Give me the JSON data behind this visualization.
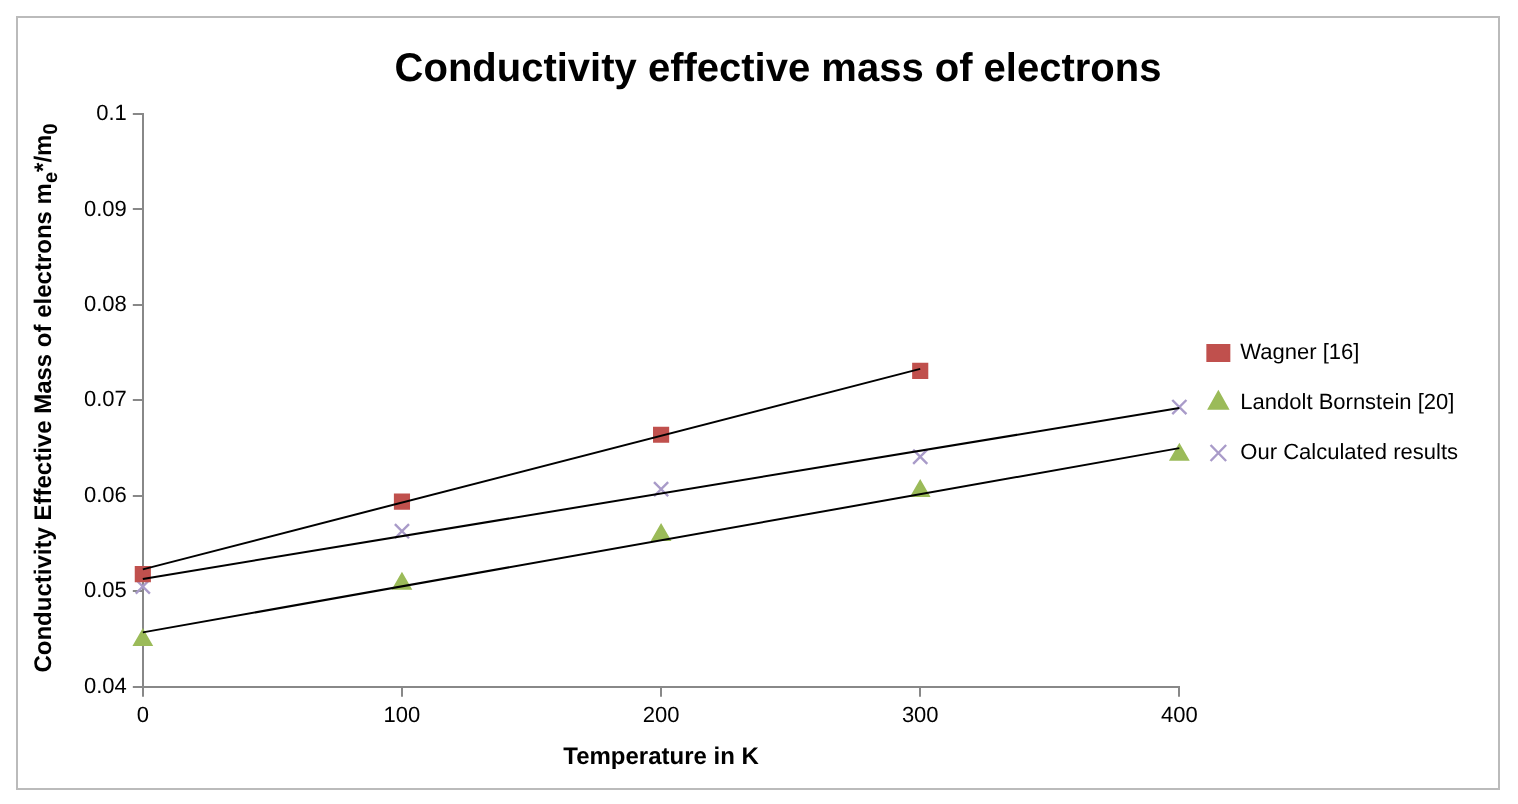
{
  "chart_data": {
    "type": "scatter",
    "title": "Conductivity effective mass of electrons",
    "xlabel": "Temperature in K",
    "ylabel": "Conductivity Effective Mass of electrons m$_{e}$*/m$_{0}$",
    "xlim": [
      0,
      400
    ],
    "xticks": [
      0,
      100,
      200,
      300,
      400
    ],
    "ylim": [
      0.04,
      0.1
    ],
    "yticks": [
      0.04,
      0.05,
      0.06,
      0.07,
      0.08,
      0.09,
      0.1
    ],
    "grid": false,
    "legend": "right",
    "series": [
      {
        "name": "Wagner [16]",
        "color": "#c0504d",
        "marker": "square",
        "x": [
          0,
          100,
          200,
          300
        ],
        "values": [
          0.0518,
          0.0594,
          0.0664,
          0.0731
        ]
      },
      {
        "name": "Landolt Bornstein [20]",
        "color": "#9bbb59",
        "marker": "triangle",
        "x": [
          0,
          100,
          200,
          300,
          400
        ],
        "values": [
          0.0449,
          0.0508,
          0.0559,
          0.0605,
          0.0643
        ]
      },
      {
        "name": "Our Calculated results",
        "color": "#a99bc9",
        "marker": "cross",
        "x": [
          0,
          100,
          200,
          300,
          400
        ],
        "values": [
          0.0505,
          0.0563,
          0.0607,
          0.0641,
          0.0693
        ]
      },
      {
        "type": "line",
        "color": "#000000",
        "marker": "none",
        "x": [
          0,
          300
        ],
        "values": [
          0.0523,
          0.0733
        ]
      },
      {
        "type": "line",
        "color": "#000000",
        "marker": "none",
        "x": [
          0,
          400
        ],
        "values": [
          0.0457,
          0.065
        ]
      },
      {
        "type": "line",
        "color": "#000000",
        "marker": "none",
        "x": [
          0,
          400
        ],
        "values": [
          0.0513,
          0.0692
        ]
      }
    ]
  }
}
